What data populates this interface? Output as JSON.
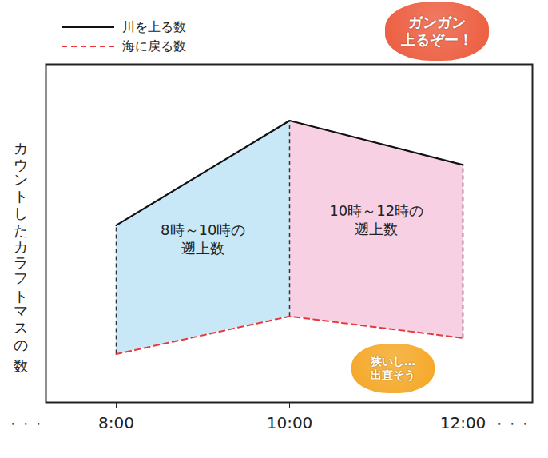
{
  "chart_data": {
    "type": "line",
    "y_label": "カウントしたカラフトマスの数",
    "categories": [
      "8:00",
      "10:00",
      "12:00"
    ],
    "x_ellipsis": "・・・",
    "series": [
      {
        "name": "川を上る数",
        "color": "#111111",
        "line_style": "solid",
        "values": [
          220,
          350,
          295
        ]
      },
      {
        "name": "海に戻る数",
        "color": "#e8383d",
        "line_style": "dashed",
        "values": [
          60,
          107,
          80
        ]
      }
    ],
    "ylim": [
      0,
      420
    ],
    "yticks": [],
    "tick_labels": "x",
    "legend": "top-left",
    "regions": [
      {
        "from": "8:00",
        "to": "10:00",
        "lines": [
          "8時～10時の",
          "遡上数"
        ],
        "color": "#c8e8f8"
      },
      {
        "from": "10:00",
        "to": "12:00",
        "lines": [
          "10時～12時の",
          "遡上数"
        ],
        "color": "#f8d0e4"
      }
    ],
    "callouts": [
      {
        "lines": [
          "ガンガン",
          "上るぞー！"
        ],
        "color": "#ec5a3c"
      },
      {
        "lines": [
          "狭いし…",
          "出直そう"
        ],
        "color": "#f5a623"
      }
    ]
  }
}
